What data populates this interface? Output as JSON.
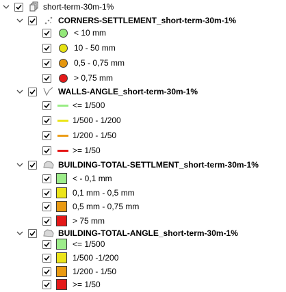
{
  "root": {
    "label": "short-term-30m-1%",
    "checked": true
  },
  "groups": [
    {
      "label": "CORNERS-SETTLEMENT_short-term-30m-1%",
      "icon": "point-layer-icon",
      "items": [
        {
          "label": "< 10 mm",
          "color": "#94e87a",
          "symbol": "circle"
        },
        {
          "label": "10 - 50 mm",
          "color": "#e6e213",
          "symbol": "circle"
        },
        {
          "label": "0,5 - 0,75 mm",
          "color": "#e5960e",
          "symbol": "circle"
        },
        {
          "label": "> 0,75 mm",
          "color": "#e41a1a",
          "symbol": "circle"
        }
      ]
    },
    {
      "label": "WALLS-ANGLE_short-term-30m-1%",
      "icon": "line-layer-icon",
      "items": [
        {
          "label": "<= 1/500",
          "color": "#98ec83",
          "symbol": "line"
        },
        {
          "label": "1/500 - 1/200",
          "color": "#ebe51a",
          "symbol": "line"
        },
        {
          "label": "1/200 - 1/50",
          "color": "#ec9c15",
          "symbol": "line"
        },
        {
          "label": ">= 1/50",
          "color": "#e41717",
          "symbol": "line"
        }
      ]
    },
    {
      "label": "BUILDING-TOTAL-SETTLMENT_short-term-30m-1%",
      "icon": "polygon-layer-icon",
      "items": [
        {
          "label": "< - 0,1 mm",
          "color": "#9ded8a",
          "symbol": "square"
        },
        {
          "label": "0,1 mm - 0,5 mm",
          "color": "#ece419",
          "symbol": "square"
        },
        {
          "label": "0,5 mm - 0,75 mm",
          "color": "#ea9a11",
          "symbol": "square"
        },
        {
          "label": "> 75 mm",
          "color": "#e41818",
          "symbol": "square"
        }
      ]
    },
    {
      "label": "BUILDING-TOTAL-ANGLE_short-term-30m-1%",
      "icon": "polygon-layer-icon",
      "items": [
        {
          "label": "<= 1/500",
          "color": "#9ded8a",
          "symbol": "square"
        },
        {
          "label": "1/500 -1/200",
          "color": "#ece419",
          "symbol": "square"
        },
        {
          "label": "1/200 - 1/50",
          "color": "#ea9a11",
          "symbol": "square"
        },
        {
          "label": ">= 1/50",
          "color": "#e41818",
          "symbol": "square"
        }
      ]
    }
  ]
}
